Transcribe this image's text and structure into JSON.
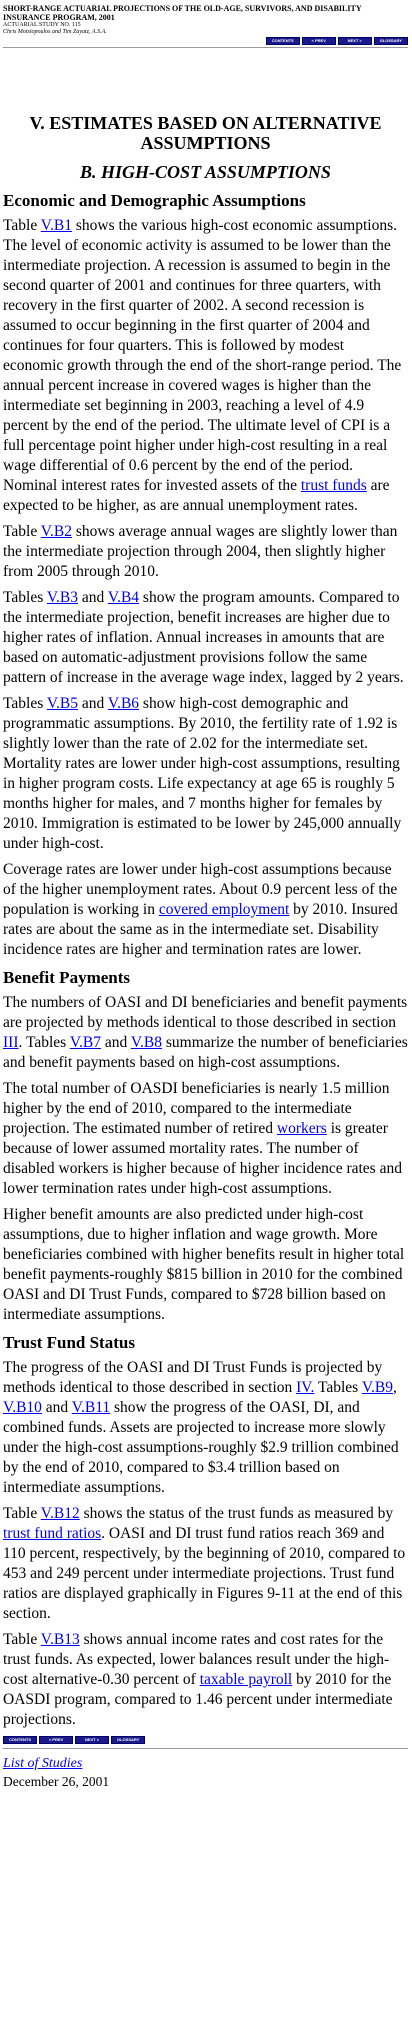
{
  "header": {
    "title": "SHORT-RANGE ACTUARIAL PROJECTIONS OF THE OLD-AGE, SURVIVORS, AND DISABILITY INSURANCE PROGRAM, 2001",
    "study": "ACTUARIAL STUDY NO. 115",
    "authors": "Chris Motsiopoulos and Tim Zayatz, A.S.A."
  },
  "nav": {
    "contents": "CONTENTS",
    "prev": "< PREV",
    "next": "NEXT >",
    "glossary": "GLOSSARY"
  },
  "headings": {
    "chapter": "V. ESTIMATES BASED ON ALTERNATIVE ASSUMPTIONS",
    "section": "B. HIGH-COST ASSUMPTIONS",
    "econ": "Economic and Demographic Assumptions",
    "benefit": "Benefit Payments",
    "trust": "Trust Fund Status"
  },
  "links": {
    "vb1": "V.B1",
    "vb2": "V.B2",
    "vb3": "V.B3",
    "vb4": "V.B4",
    "vb5": "V.B5",
    "vb6": "V.B6",
    "vb7": "V.B7",
    "vb8": "V.B8",
    "vb9": "V.B9",
    "vb10": "V.B10",
    "vb11": "V.B11",
    "vb12": "V.B12",
    "vb13": "V.B13",
    "trust_funds": "trust funds",
    "covered_employment": "covered employment",
    "section3": "III",
    "workers": "workers",
    "section4": "IV.",
    "trust_fund_ratios": "trust fund ratios",
    "taxable_payroll": "taxable payroll"
  },
  "p1": {
    "a": "Table ",
    "b": " shows the various high-cost economic assumptions. The level of economic activity is assumed to be lower than the intermediate projection. A recession is assumed to begin in the second quarter of 2001 and continues for three quarters, with recovery in the first quarter of 2002. A second recession is assumed to occur beginning in the first quarter of 2004 and continues for four quarters. This is followed by modest economic growth through the end of the short-range period. The annual percent increase in covered wages is higher than the intermediate set beginning in 2003, reaching a level of 4.9 percent by the end of the period. The ultimate level of CPI is a full percentage point higher under high-cost resulting in a real wage differential of 0.6 percent by the end of the period. Nominal interest rates for invested assets of the ",
    "c": " are expected to be higher, as are annual unemployment rates."
  },
  "p2": {
    "a": "Table ",
    "b": " shows average annual wages are slightly lower than the intermediate projection through 2004, then slightly higher from 2005 through 2010."
  },
  "p3": {
    "a": "Tables ",
    "b": " and ",
    "c": " show the program amounts. Compared to the intermediate projection, benefit increases are higher due to higher rates of inflation. Annual increases in amounts that are based on automatic-adjustment provisions follow the same pattern of increase in the average wage index, lagged by 2 years."
  },
  "p4": {
    "a": "Tables ",
    "b": " and ",
    "c": " show high-cost demographic and programmatic assumptions. By 2010, the fertility rate of 1.92 is slightly lower than the rate of 2.02 for the intermediate set. Mortality rates are lower under high-cost assumptions, resulting in higher program costs. Life expectancy at age 65 is roughly 5 months higher for males, and 7 months higher for females by 2010. Immigration is estimated to be lower by 245,000 annually under high-cost."
  },
  "p5": {
    "a": "Coverage rates are lower under high-cost assumptions because of the higher unemployment rates. About 0.9 percent less of the population is working in ",
    "b": " by 2010. Insured rates are about the same as in the intermediate set. Disability incidence rates are higher and termination rates are lower."
  },
  "p6": {
    "a": "The numbers of OASI and DI beneficiaries and benefit payments are projected by methods identical to those described in section ",
    "b": ". Tables ",
    "c": " and ",
    "d": " summarize the number of beneficiaries and benefit payments based on high-cost assumptions."
  },
  "p7": {
    "a": "The total number of OASDI beneficiaries is nearly 1.5 million higher by the end of 2010, compared to the intermediate projection. The estimated number of retired ",
    "b": " is greater because of lower assumed mortality rates. The number of disabled workers is higher because of higher incidence rates and lower termination rates under high-cost assumptions."
  },
  "p8": {
    "a": "Higher benefit amounts are also predicted under high-cost assumptions, due to higher inflation and wage growth. More beneficiaries combined with higher benefits result in higher total benefit payments-roughly $815 billion in 2010 for the combined OASI and DI Trust Funds, compared to $728 billion based on intermediate assumptions."
  },
  "p9": {
    "a": "The progress of the OASI and DI Trust Funds is projected by methods identical to those described in section ",
    "b": " Tables ",
    "c": ", ",
    "d": " and ",
    "e": " show the progress of the OASI, DI, and combined funds. Assets are projected to increase more slowly under the high-cost assumptions-roughly $2.9 trillion combined by the end of 2010, compared to $3.4 trillion based on intermediate assumptions."
  },
  "p10": {
    "a": "Table ",
    "b": " shows the status of the trust funds as measured by ",
    "c": ". OASI and DI trust fund ratios reach 369 and 110 percent, respectively, by the beginning of 2010, compared to 453 and 249 percent under intermediate projections. Trust fund ratios are displayed graphically in Figures 9-11 at the end of this section."
  },
  "p11": {
    "a": "Table ",
    "b": " shows annual income rates and cost rates for the trust funds. As expected, lower balances result under the high-cost alternative-0.30 percent of ",
    "c": " by 2010 for the OASDI program, compared to 1.46 percent under intermediate projections."
  },
  "footer": {
    "list": "List of Studies",
    "date": "December 26, 2001"
  }
}
